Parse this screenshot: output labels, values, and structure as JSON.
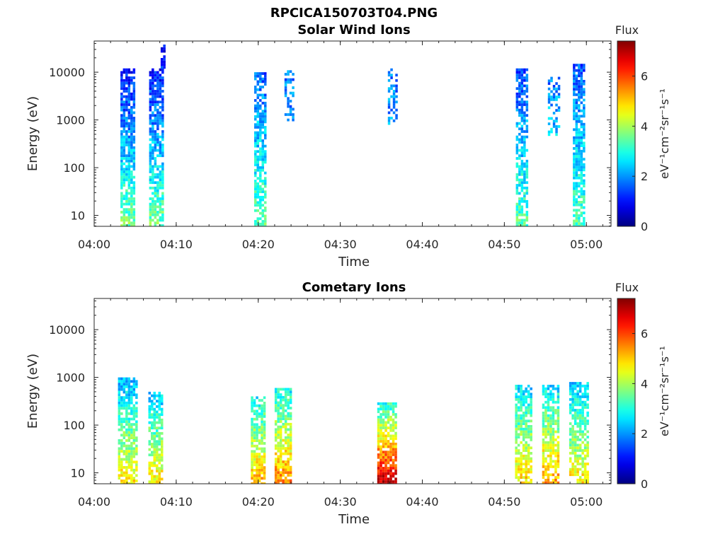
{
  "figure": {
    "title": "RPCICA150703T04.PNG"
  },
  "colorbar": {
    "colormap": "jet",
    "label": "Flux",
    "unit_label": "eV⁻¹cm⁻²sr⁻¹s⁻¹",
    "range": [
      0,
      7.4
    ],
    "ticks": [
      0,
      2,
      4,
      6
    ],
    "tick_labels": [
      "0",
      "2",
      "4",
      "6"
    ]
  },
  "colors": {
    "axis": "#262626",
    "background": "#ffffff"
  },
  "chart_data": [
    {
      "type": "heatmap",
      "title": "Solar Wind Ions",
      "xlabel": "Time",
      "ylabel": "Energy (eV)",
      "y_scale": "log",
      "xlim": [
        "04:00",
        "05:03"
      ],
      "ylim": [
        5.9,
        45000
      ],
      "x_ticks": [
        "04:00",
        "04:10",
        "04:20",
        "04:30",
        "04:40",
        "04:50",
        "05:00"
      ],
      "y_ticks": [
        10,
        100,
        1000,
        10000
      ],
      "y_tick_labels": [
        "10",
        "100",
        "1000",
        "10000"
      ],
      "clim": [
        0,
        7.4
      ],
      "bursts": [
        {
          "center": "04:04",
          "width_min": 1.6,
          "e_min": 6,
          "e_max": 12000,
          "flux_low_e": 3.6,
          "flux_high_e": 1.0,
          "density": 0.82
        },
        {
          "center": "04:07.5",
          "width_min": 1.6,
          "e_min": 6,
          "e_max": 12000,
          "flux_low_e": 3.6,
          "flux_high_e": 1.0,
          "density": 0.8
        },
        {
          "center": "04:08.3",
          "width_min": 0.4,
          "e_min": 12000,
          "e_max": 38000,
          "flux_low_e": 1.2,
          "flux_high_e": 1.0,
          "density": 0.6
        },
        {
          "center": "04:20.2",
          "width_min": 1.4,
          "e_min": 6,
          "e_max": 10000,
          "flux_low_e": 3.5,
          "flux_high_e": 1.6,
          "density": 0.75
        },
        {
          "center": "04:23.8",
          "width_min": 1.2,
          "e_min": 1000,
          "e_max": 11000,
          "flux_low_e": 2.0,
          "flux_high_e": 1.8,
          "density": 0.4
        },
        {
          "center": "04:36.3",
          "width_min": 1.0,
          "e_min": 800,
          "e_max": 12000,
          "flux_low_e": 2.0,
          "flux_high_e": 1.8,
          "density": 0.45
        },
        {
          "center": "04:52.1",
          "width_min": 1.4,
          "e_min": 6,
          "e_max": 12000,
          "flux_low_e": 3.4,
          "flux_high_e": 1.4,
          "density": 0.75
        },
        {
          "center": "04:56",
          "width_min": 1.4,
          "e_min": 500,
          "e_max": 8000,
          "flux_low_e": 2.4,
          "flux_high_e": 1.8,
          "density": 0.5
        },
        {
          "center": "04:59.1",
          "width_min": 1.5,
          "e_min": 6,
          "e_max": 15000,
          "flux_low_e": 3.4,
          "flux_high_e": 1.5,
          "density": 0.75
        }
      ]
    },
    {
      "type": "heatmap",
      "title": "Cometary Ions",
      "xlabel": "Time",
      "ylabel": "Energy (eV)",
      "y_scale": "log",
      "xlim": [
        "04:00",
        "05:03"
      ],
      "ylim": [
        5.9,
        45000
      ],
      "x_ticks": [
        "04:00",
        "04:10",
        "04:20",
        "04:30",
        "04:40",
        "04:50",
        "05:00"
      ],
      "y_ticks": [
        10,
        100,
        1000,
        10000
      ],
      "y_tick_labels": [
        "10",
        "100",
        "1000",
        "10000"
      ],
      "clim": [
        0,
        7.4
      ],
      "bursts": [
        {
          "center": "04:04",
          "width_min": 2.2,
          "e_min": 6,
          "e_max": 1000,
          "flux_low_e": 4.8,
          "flux_high_e": 2.2,
          "density": 0.75
        },
        {
          "center": "04:07.5",
          "width_min": 1.8,
          "e_min": 6,
          "e_max": 500,
          "flux_low_e": 4.8,
          "flux_high_e": 2.4,
          "density": 0.75
        },
        {
          "center": "04:20",
          "width_min": 1.8,
          "e_min": 6,
          "e_max": 400,
          "flux_low_e": 5.2,
          "flux_high_e": 2.8,
          "density": 0.8
        },
        {
          "center": "04:23",
          "width_min": 2.0,
          "e_min": 6,
          "e_max": 600,
          "flux_low_e": 5.6,
          "flux_high_e": 2.8,
          "density": 0.8
        },
        {
          "center": "04:35.6",
          "width_min": 2.2,
          "e_min": 6,
          "e_max": 300,
          "flux_low_e": 7.0,
          "flux_high_e": 3.0,
          "density": 0.85
        },
        {
          "center": "04:52.3",
          "width_min": 2.0,
          "e_min": 6,
          "e_max": 700,
          "flux_low_e": 5.0,
          "flux_high_e": 2.5,
          "density": 0.75
        },
        {
          "center": "04:55.6",
          "width_min": 2.0,
          "e_min": 6,
          "e_max": 700,
          "flux_low_e": 5.4,
          "flux_high_e": 2.6,
          "density": 0.75
        },
        {
          "center": "04:59",
          "width_min": 2.2,
          "e_min": 6,
          "e_max": 800,
          "flux_low_e": 4.8,
          "flux_high_e": 2.4,
          "density": 0.7
        }
      ]
    }
  ]
}
